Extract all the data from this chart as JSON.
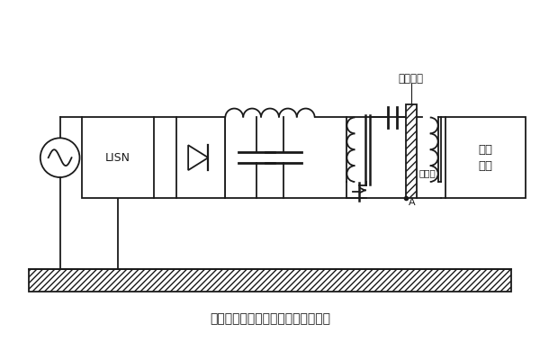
{
  "title": "变压器屏蔽层接地在原理图中的位置",
  "label_distributed_cap": "分布电容",
  "label_shield": "屏蔽层",
  "label_point_a": "A",
  "label_lisn": "LISN",
  "label_back_circuit": "后级\n电路",
  "bg_color": "#ffffff",
  "line_color": "#1a1a1a"
}
